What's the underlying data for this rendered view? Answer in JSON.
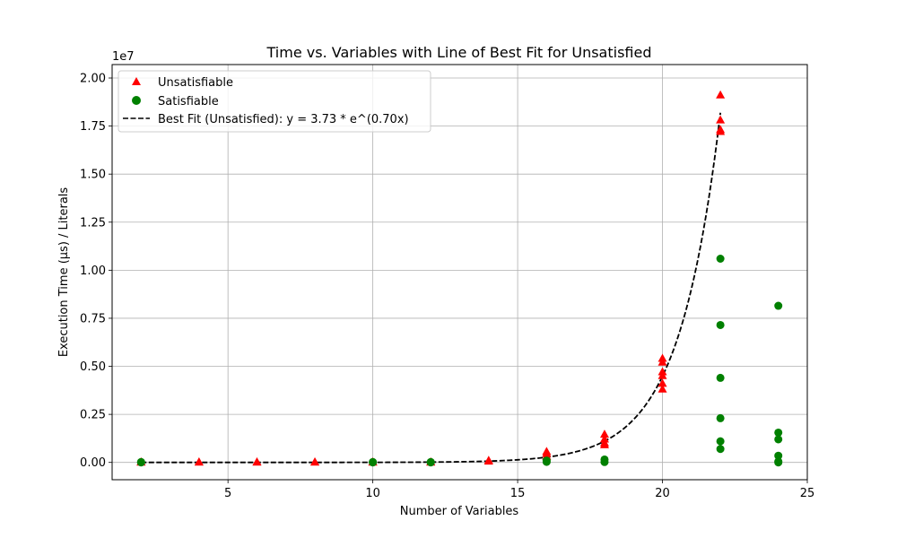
{
  "chart_data": {
    "type": "scatter",
    "title": "Time vs. Variables with Line of Best Fit for Unsatisfied",
    "xlabel": "Number of Variables",
    "ylabel": "Execution Time (µs) / Literals",
    "y_multiplier_label": "1e7",
    "xlim": [
      1.0,
      25.0
    ],
    "ylim": [
      -900000,
      20700000
    ],
    "x_ticks": [
      5,
      10,
      15,
      20,
      25
    ],
    "y_ticks": [
      0,
      2500000,
      5000000,
      7500000,
      10000000,
      12500000,
      15000000,
      17500000,
      20000000
    ],
    "y_tick_labels": [
      "0.00",
      "0.25",
      "0.50",
      "0.75",
      "1.00",
      "1.25",
      "1.50",
      "1.75",
      "2.00"
    ],
    "x_tick_labels": [
      "5",
      "10",
      "15",
      "20",
      "25"
    ],
    "grid": true,
    "legend_position": "top-left",
    "series": [
      {
        "name": "Unsatisfiable",
        "marker": "triangle",
        "color": "#ff0000",
        "points": [
          [
            2,
            0
          ],
          [
            2,
            10000
          ],
          [
            4,
            0
          ],
          [
            4,
            10000
          ],
          [
            6,
            0
          ],
          [
            6,
            10000
          ],
          [
            8,
            0
          ],
          [
            8,
            10000
          ],
          [
            10,
            0
          ],
          [
            10,
            10000
          ],
          [
            12,
            0
          ],
          [
            12,
            10000
          ],
          [
            14,
            50000
          ],
          [
            14,
            90000
          ],
          [
            16,
            300000
          ],
          [
            16,
            450000
          ],
          [
            16,
            550000
          ],
          [
            18,
            900000
          ],
          [
            18,
            1000000
          ],
          [
            18,
            1200000
          ],
          [
            18,
            1450000
          ],
          [
            20,
            3800000
          ],
          [
            20,
            4100000
          ],
          [
            20,
            4500000
          ],
          [
            20,
            4700000
          ],
          [
            20,
            5200000
          ],
          [
            20,
            5400000
          ],
          [
            22,
            17200000
          ],
          [
            22,
            17300000
          ],
          [
            22,
            17800000
          ],
          [
            22,
            19100000
          ]
        ]
      },
      {
        "name": "Satisfiable",
        "marker": "circle",
        "color": "#008000",
        "points": [
          [
            2,
            0
          ],
          [
            2,
            20000
          ],
          [
            10,
            0
          ],
          [
            10,
            20000
          ],
          [
            12,
            0
          ],
          [
            12,
            20000
          ],
          [
            16,
            30000
          ],
          [
            16,
            100000
          ],
          [
            18,
            20000
          ],
          [
            18,
            150000
          ],
          [
            22,
            700000
          ],
          [
            22,
            1100000
          ],
          [
            22,
            2300000
          ],
          [
            22,
            4400000
          ],
          [
            22,
            7150000
          ],
          [
            22,
            10600000
          ],
          [
            24,
            0
          ],
          [
            24,
            50000
          ],
          [
            24,
            350000
          ],
          [
            24,
            1200000
          ],
          [
            24,
            1550000
          ],
          [
            24,
            8150000
          ]
        ]
      },
      {
        "name": "Best Fit (Unsatisfied): y = 3.73 * e^(0.70x)",
        "type": "line",
        "style": "dashed",
        "color": "#000000",
        "equation": {
          "a": 3.73,
          "b": 0.7
        },
        "x_range": [
          2,
          22
        ]
      }
    ]
  }
}
